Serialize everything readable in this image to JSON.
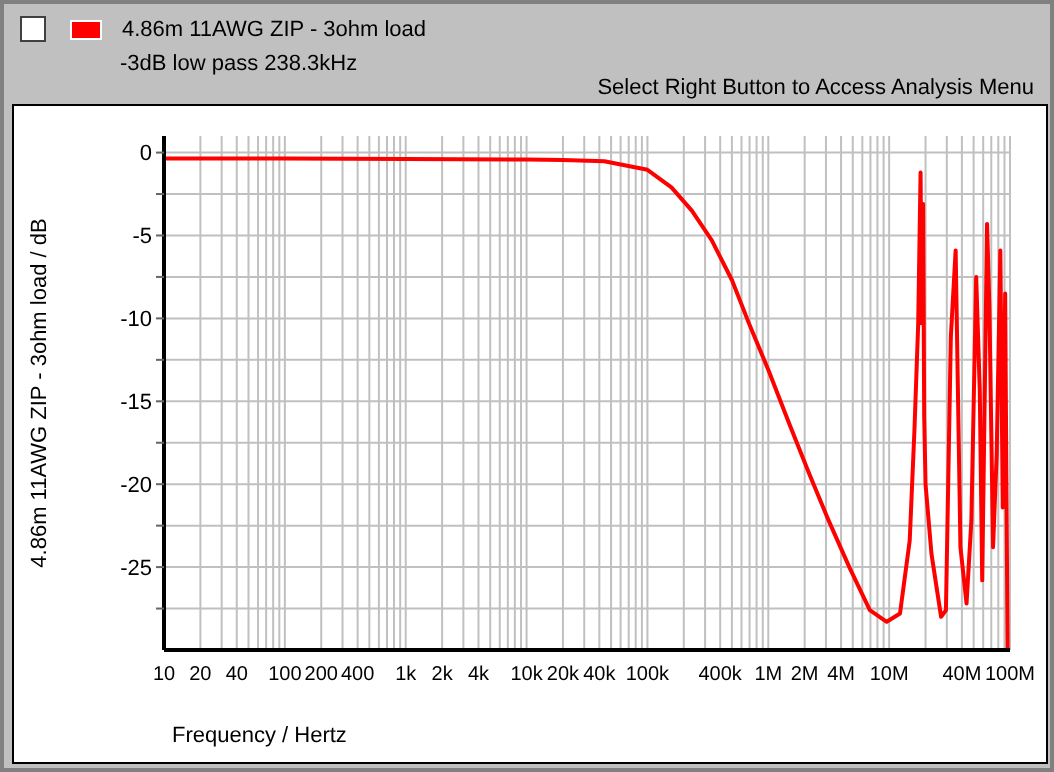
{
  "chart_data": {
    "type": "line",
    "xlabel": "Frequency / Hertz",
    "ylabel": "4.86m 11AWG ZIP - 3ohm load / dB",
    "annotations": [
      "-3dB low pass   238.3kHz",
      "Select Right Button to Access Analysis Menu"
    ],
    "legend": "top",
    "grid": true,
    "log": "x",
    "marker": "none",
    "line_style": "solid",
    "xlim": [
      10,
      100000000
    ],
    "ylim": [
      -30,
      1
    ],
    "xticks": [
      10,
      20,
      {
        "value": 30,
        "label": null
      },
      40,
      {
        "value": 50,
        "label": null
      },
      {
        "value": 60,
        "label": null
      },
      {
        "value": 70,
        "label": null
      },
      {
        "value": 80,
        "label": null
      },
      {
        "value": 90,
        "label": null
      },
      100,
      200,
      {
        "value": 300,
        "label": null
      },
      400,
      {
        "value": 500,
        "label": null
      },
      {
        "value": 600,
        "label": null
      },
      {
        "value": 700,
        "label": null
      },
      {
        "value": 800,
        "label": null
      },
      {
        "value": 900,
        "label": null
      },
      {
        "value": 1000,
        "label": "1k"
      },
      {
        "value": 2000,
        "label": "2k"
      },
      {
        "value": 3000,
        "label": null
      },
      {
        "value": 4000,
        "label": "4k"
      },
      {
        "value": 5000,
        "label": null
      },
      {
        "value": 6000,
        "label": null
      },
      {
        "value": 7000,
        "label": null
      },
      {
        "value": 8000,
        "label": null
      },
      {
        "value": 9000,
        "label": null
      },
      {
        "value": 10000,
        "label": "10k"
      },
      {
        "value": 20000,
        "label": "20k"
      },
      {
        "value": 30000,
        "label": null
      },
      {
        "value": 40000,
        "label": "40k"
      },
      {
        "value": 50000,
        "label": null
      },
      {
        "value": 60000,
        "label": null
      },
      {
        "value": 70000,
        "label": null
      },
      {
        "value": 80000,
        "label": null
      },
      {
        "value": 90000,
        "label": null
      },
      {
        "value": 100000,
        "label": "100k"
      },
      {
        "value": 200000,
        "label": null
      },
      {
        "value": 300000,
        "label": null
      },
      {
        "value": 400000,
        "label": "400k"
      },
      {
        "value": 500000,
        "label": null
      },
      {
        "value": 600000,
        "label": null
      },
      {
        "value": 700000,
        "label": null
      },
      {
        "value": 800000,
        "label": null
      },
      {
        "value": 900000,
        "label": null
      },
      {
        "value": 1000000,
        "label": "1M"
      },
      {
        "value": 2000000,
        "label": "2M"
      },
      {
        "value": 3000000,
        "label": null
      },
      {
        "value": 4000000,
        "label": "4M"
      },
      {
        "value": 5000000,
        "label": null
      },
      {
        "value": 6000000,
        "label": null
      },
      {
        "value": 7000000,
        "label": null
      },
      {
        "value": 8000000,
        "label": null
      },
      {
        "value": 9000000,
        "label": null
      },
      {
        "value": 10000000,
        "label": "10M"
      },
      {
        "value": 20000000,
        "label": null
      },
      {
        "value": 30000000,
        "label": null
      },
      {
        "value": 40000000,
        "label": "40M"
      },
      {
        "value": 50000000,
        "label": null
      },
      {
        "value": 60000000,
        "label": null
      },
      {
        "value": 70000000,
        "label": null
      },
      {
        "value": 80000000,
        "label": null
      },
      {
        "value": 90000000,
        "label": null
      },
      {
        "value": 100000000,
        "label": "100M"
      }
    ],
    "yticks": [
      0,
      {
        "value": -2.5,
        "label": null
      },
      -5,
      {
        "value": -7.5,
        "label": null
      },
      -10,
      {
        "value": -12.5,
        "label": null
      },
      -15,
      {
        "value": -17.5,
        "label": null
      },
      -20,
      {
        "value": -22.5,
        "label": null
      },
      -25,
      {
        "value": -27.5,
        "label": null
      }
    ],
    "series": [
      {
        "name": "4.86m 11AWG ZIP - 3ohm load",
        "color": "#ff0000",
        "x": [
          10,
          100,
          1000,
          10000,
          20000,
          44000,
          100000,
          158000,
          233000,
          341000,
          501000,
          692000,
          1000000,
          1480000,
          2190000,
          3160000,
          4680000,
          6920000,
          9550000,
          12300000,
          14800000,
          16200000,
          17400000,
          18200000,
          18600000,
          19100000,
          19500000,
          20000000,
          22400000,
          26900000,
          29500000,
          32400000,
          35500000,
          38900000,
          43700000,
          47900000,
          52500000,
          56200000,
          58900000,
          64600000,
          67600000,
          72400000,
          77600000,
          83200000,
          87100000,
          91200000,
          93300000,
          95500000
        ],
        "values": [
          -0.35,
          -0.35,
          -0.38,
          -0.42,
          -0.45,
          -0.52,
          -1.04,
          -2.1,
          -3.5,
          -5.3,
          -7.7,
          -10.3,
          -13.1,
          -16.3,
          -19.4,
          -22.2,
          -25.0,
          -27.6,
          -28.3,
          -27.8,
          -23.4,
          -16.7,
          -10.3,
          -1.2,
          -10.3,
          -3.1,
          -15.9,
          -20.0,
          -24.2,
          -28.0,
          -27.6,
          -11.1,
          -5.9,
          -23.8,
          -27.2,
          -22.2,
          -7.5,
          -14.3,
          -25.8,
          -4.3,
          -9.5,
          -23.8,
          -18.2,
          -5.9,
          -21.4,
          -8.5,
          -19.4,
          -29.9
        ]
      }
    ]
  }
}
